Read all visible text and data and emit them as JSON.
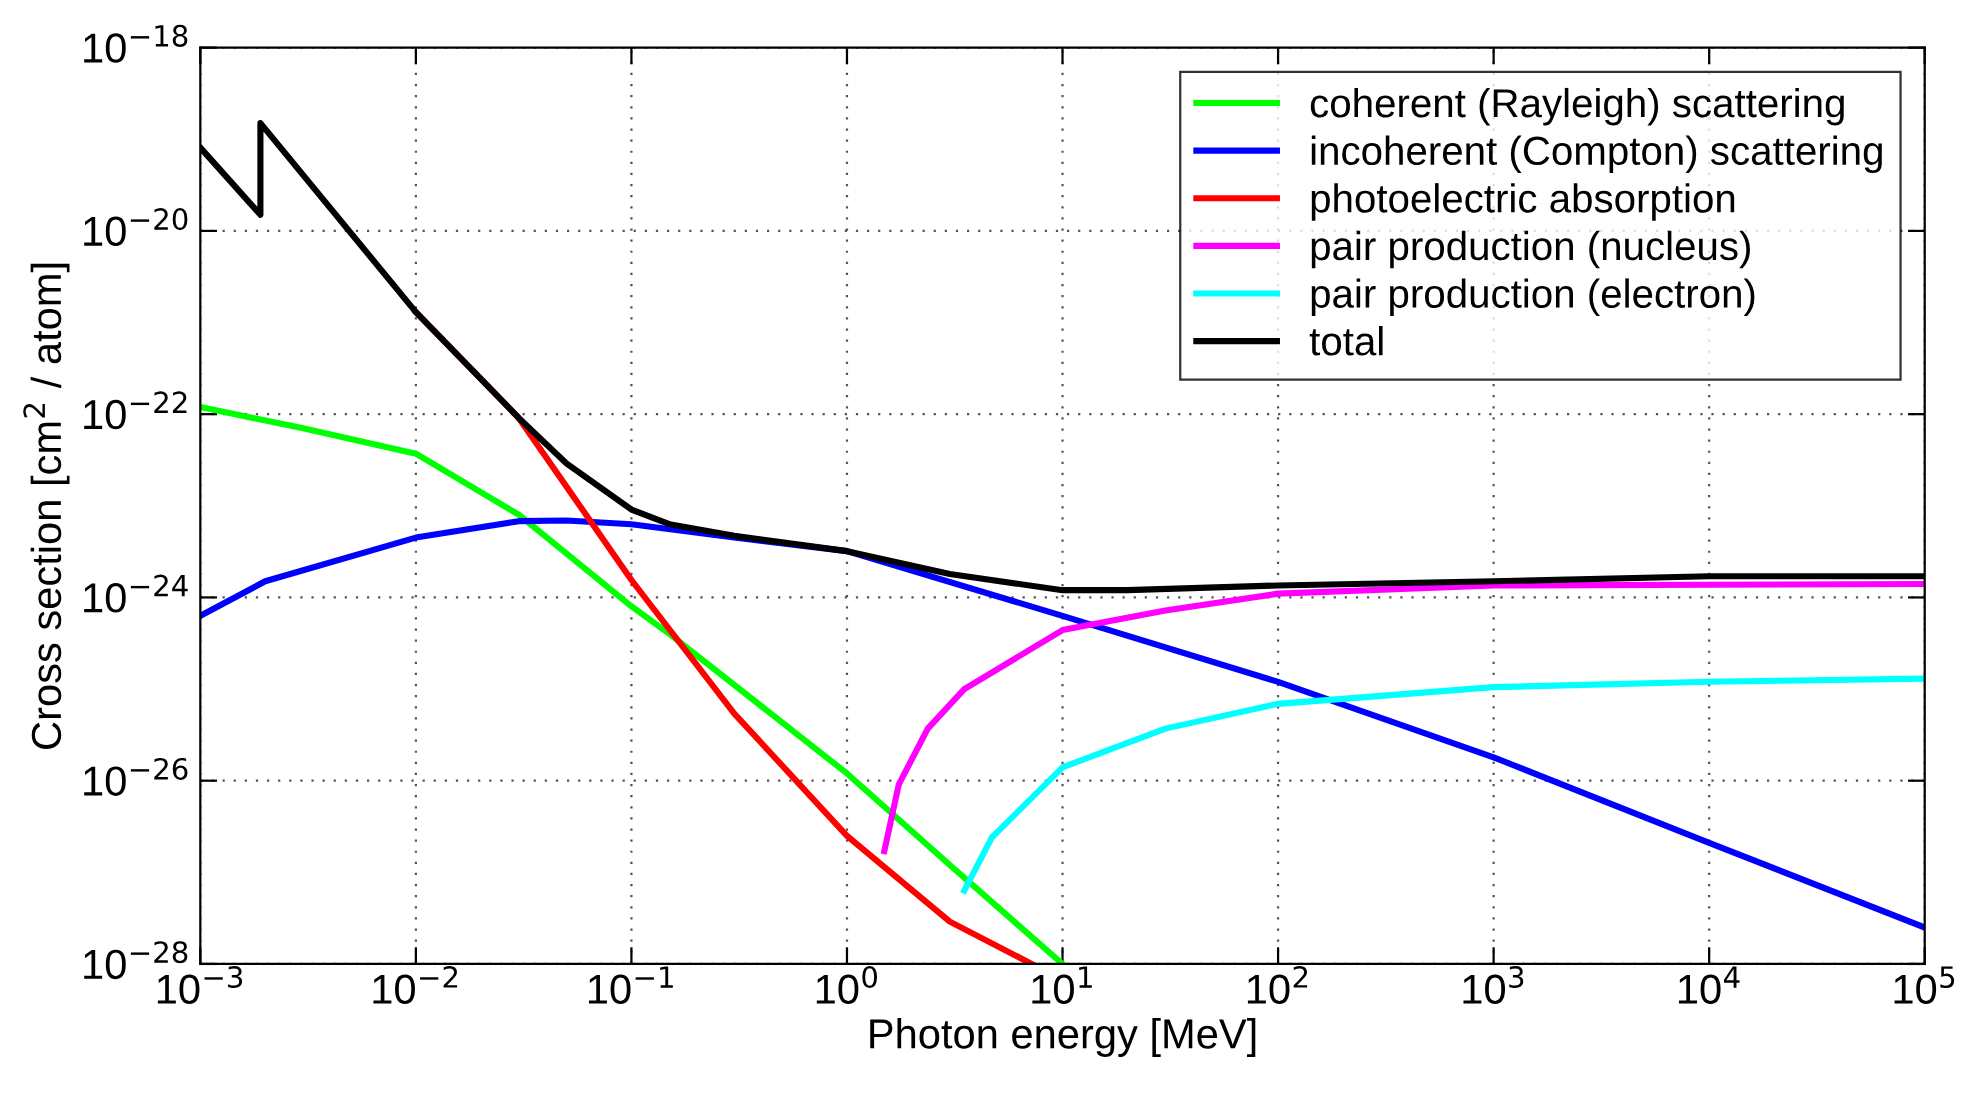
{
  "chart_data": {
    "type": "line",
    "xlabel": "Photon energy [MeV]",
    "ylabel": "Cross section [cm$^{2}$ / atom]",
    "log": "xy",
    "xlim": [
      0.001,
      100000
    ],
    "ylim": [
      1e-28,
      1e-18
    ],
    "xticks": [
      {
        "value": 0.001,
        "label": "10$^{−3}$"
      },
      {
        "value": 0.01,
        "label": "10$^{−2}$"
      },
      {
        "value": 0.1,
        "label": "10$^{−1}$"
      },
      {
        "value": 1,
        "label": "10$^{0}$"
      },
      {
        "value": 10,
        "label": "10$^{1}$"
      },
      {
        "value": 100,
        "label": "10$^{2}$"
      },
      {
        "value": 1000,
        "label": "10$^{3}$"
      },
      {
        "value": 10000,
        "label": "10$^{4}$"
      },
      {
        "value": 100000,
        "label": "10$^{5}$"
      }
    ],
    "yticks": [
      {
        "value": 1e-28,
        "label": "10$^{−28}$"
      },
      {
        "value": 1e-26,
        "label": "10$^{−26}$"
      },
      {
        "value": 1e-24,
        "label": "10$^{−24}$"
      },
      {
        "value": 1e-22,
        "label": "10$^{−22}$"
      },
      {
        "value": 1e-20,
        "label": "10$^{−20}$"
      },
      {
        "value": 1e-18,
        "label": "10$^{−18}$"
      }
    ],
    "grid": true,
    "legend": "top right",
    "line_style": "solid",
    "series": [
      {
        "name": "coherent (Rayleigh) scattering",
        "color": "#00ff00",
        "x": [
          0.001,
          0.003,
          0.01,
          0.03,
          0.1,
          0.15,
          1,
          3,
          10
        ],
        "values": [
          1.2e-22,
          7e-23,
          3.7e-23,
          8e-24,
          8e-25,
          4e-25,
          1.2e-26,
          1.2e-27,
          1e-28
        ]
      },
      {
        "name": "incoherent (Compton) scattering",
        "color": "#0000ff",
        "x": [
          0.001,
          0.002,
          0.01,
          0.03,
          0.05,
          0.1,
          0.3,
          1,
          10,
          100,
          1000,
          10000,
          100000
        ],
        "values": [
          6.3e-25,
          1.5e-24,
          4.5e-24,
          6.8e-24,
          6.9e-24,
          6.3e-24,
          4.5e-24,
          3.2e-24,
          6.3e-25,
          1.2e-25,
          1.8e-26,
          2.1e-27,
          2.5e-28
        ]
      },
      {
        "name": "photoelectric absorption",
        "color": "#ff0000",
        "x": [
          0.01,
          0.03,
          0.1,
          0.3,
          1,
          3,
          7.2
        ],
        "values": [
          1.3e-21,
          9.1e-23,
          1.55e-24,
          5.4e-26,
          2.5e-27,
          2.9e-28,
          1e-28
        ]
      },
      {
        "name": "pair production (nucleus)",
        "color": "#ff00ff",
        "x": [
          1.49,
          1.74,
          2.37,
          3.5,
          10,
          30,
          100,
          1000,
          100000
        ],
        "values": [
          1.7e-27,
          9.1e-27,
          3.7e-26,
          1e-25,
          4.4e-25,
          7.2e-25,
          1.1e-24,
          1.35e-24,
          1.4e-24
        ]
      },
      {
        "name": "pair production (electron)",
        "color": "#00ffff",
        "x": [
          3.5,
          4.7,
          10,
          30,
          100,
          1000,
          10000,
          100000
        ],
        "values": [
          6.3e-28,
          2.4e-27,
          1.4e-26,
          3.7e-26,
          6.9e-26,
          1.05e-25,
          1.2e-25,
          1.3e-25
        ]
      },
      {
        "name": "total",
        "color": "#000000",
        "x": [
          0.001,
          0.0019,
          0.0019,
          0.01,
          0.03,
          0.05,
          0.1,
          0.15,
          0.3,
          1,
          3,
          10,
          20,
          100,
          1000,
          10000,
          100000
        ],
        "values": [
          8.1e-20,
          1.5e-20,
          1.5e-19,
          1.3e-21,
          9.1e-23,
          2.9e-23,
          9.1e-24,
          6.3e-24,
          4.7e-24,
          3.2e-24,
          1.8e-24,
          1.2e-24,
          1.2e-24,
          1.35e-24,
          1.5e-24,
          1.7e-24,
          1.7e-24
        ]
      }
    ]
  }
}
